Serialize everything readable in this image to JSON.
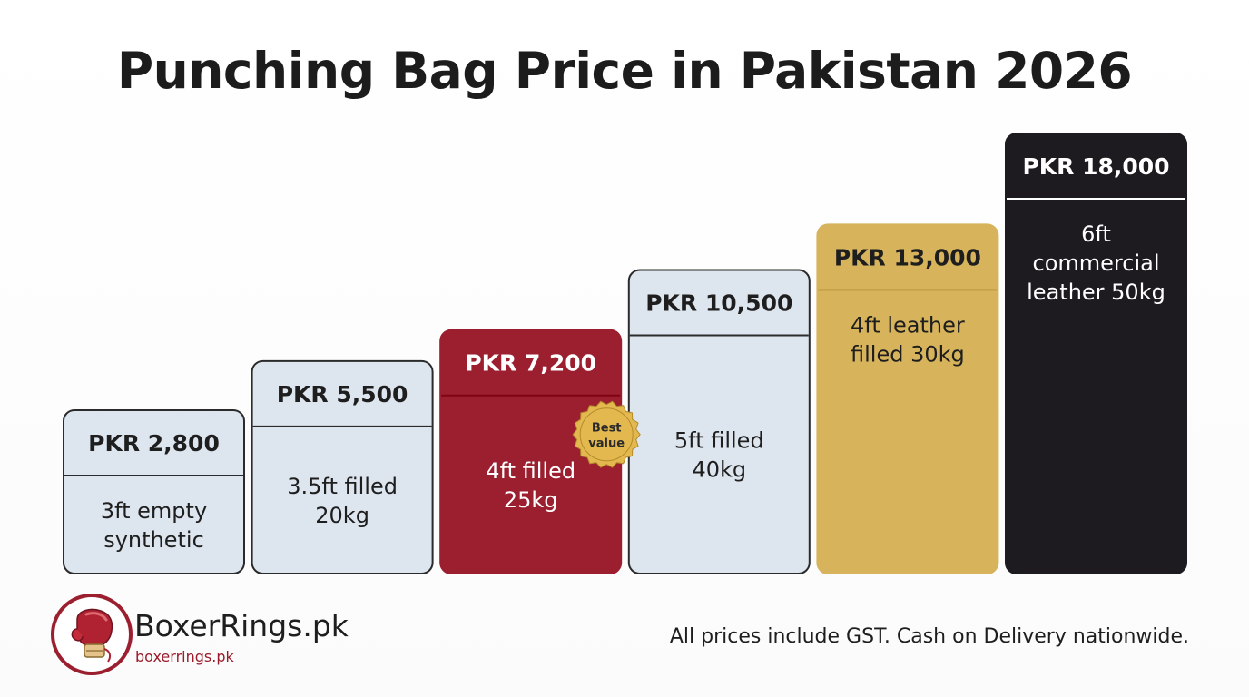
{
  "title": "Punching Bag Price in Pakistan 2026",
  "chart_data": {
    "type": "bar",
    "title": "Punching Bag Price in Pakistan 2026",
    "currency": "PKR",
    "categories": [
      [
        "3ft empty",
        "synthetic"
      ],
      [
        "3.5ft filled",
        "20kg"
      ],
      [
        "4ft filled",
        "25kg"
      ],
      [
        "5ft filled",
        "40kg"
      ],
      [
        "4ft leather",
        "filled 30kg"
      ],
      [
        "6ft",
        "commercial",
        "leather 50kg"
      ]
    ],
    "price_labels": [
      "PKR 2,800",
      "PKR 5,500",
      "PKR 7,200",
      "PKR 10,500",
      "PKR 13,000",
      "PKR 18,000"
    ],
    "values": [
      2800,
      5500,
      7200,
      10500,
      13000,
      18000
    ],
    "colors": [
      "#dde5ee",
      "#dde5ee",
      "#9b1f2f",
      "#dde5ee",
      "#d7b35c",
      "#1d1b1f"
    ],
    "text_colors": [
      "#1e1e1e",
      "#1e1e1e",
      "#ffffff",
      "#1e1e1e",
      "#1e1e1e",
      "#ffffff"
    ],
    "highlight": {
      "index": 2,
      "badge_lines": [
        "Best",
        "value"
      ],
      "badge_color": "#e2b84f"
    },
    "ylim": [
      0,
      18000
    ]
  },
  "brand": {
    "name": "BoxerRings.pk",
    "url": "boxerrings.pk",
    "logo_icon": "boxing-glove-icon"
  },
  "footnote": "All prices include GST. Cash on Delivery nationwide."
}
